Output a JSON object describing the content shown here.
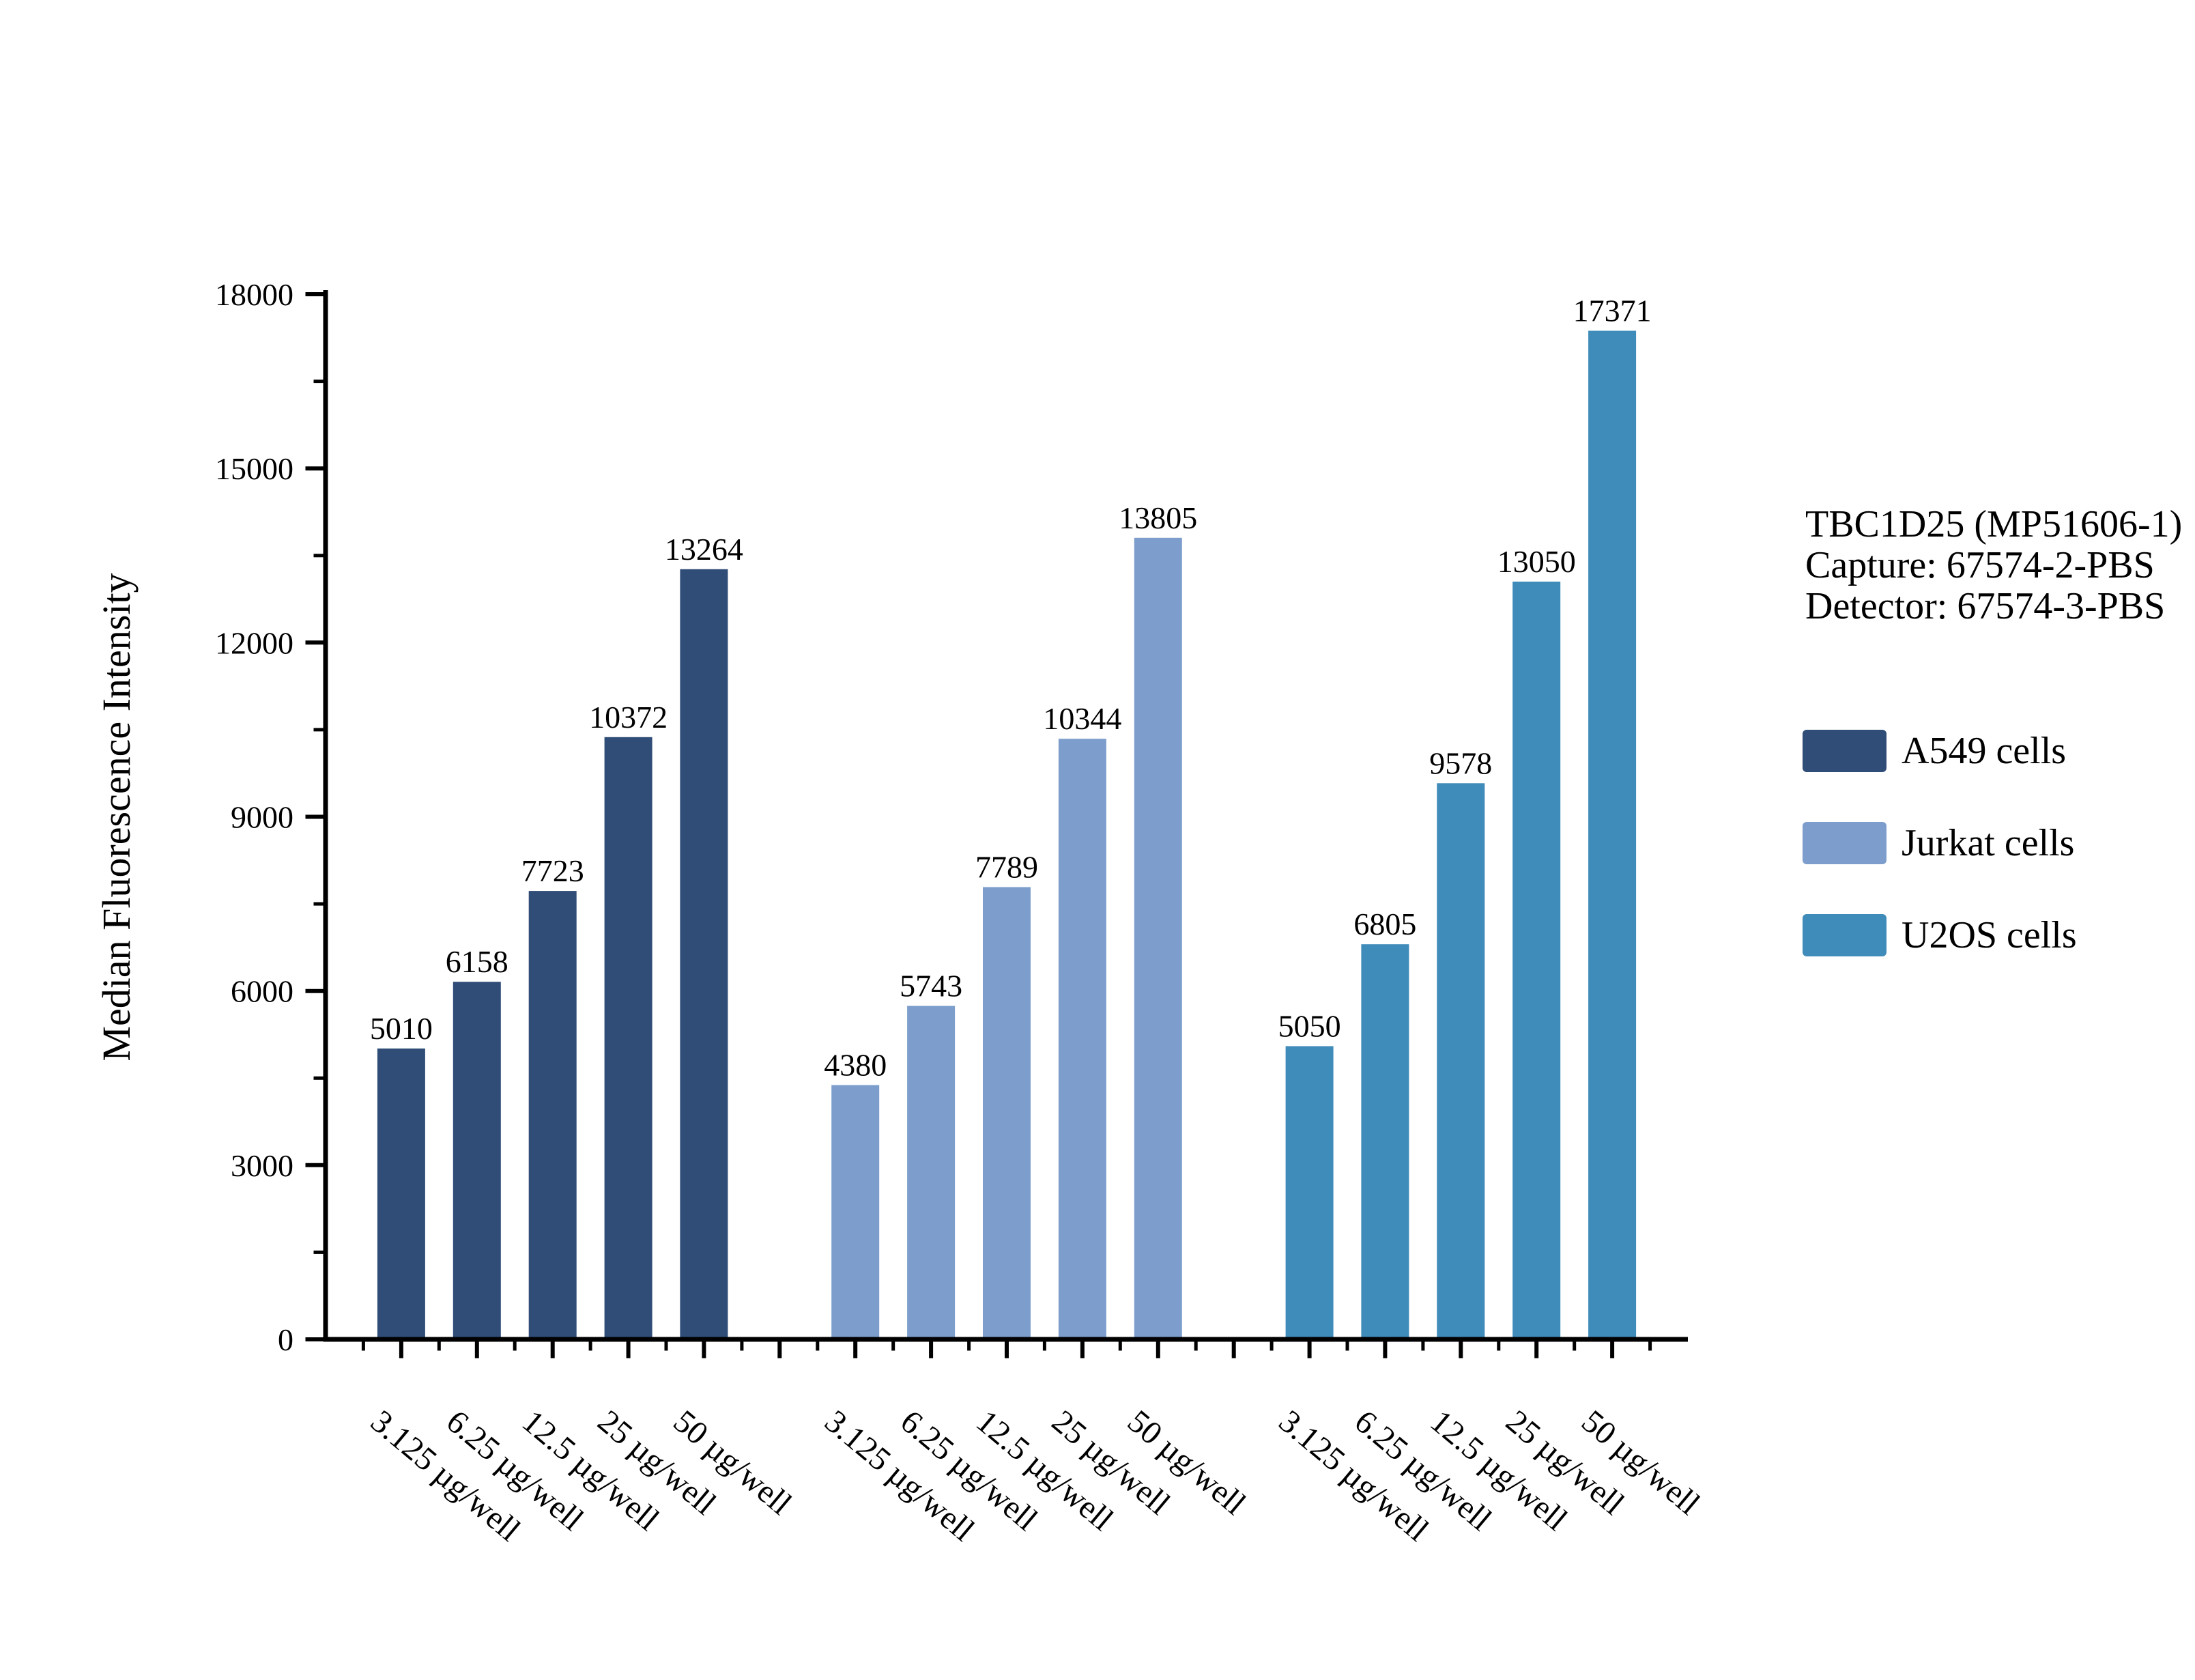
{
  "figure": {
    "background": "#ffffff",
    "text_color": "#000000",
    "axis_color": "#000000"
  },
  "chart_data": {
    "type": "bar",
    "title": "",
    "xlabel": "",
    "ylabel": "Median Fluorescence Intensity",
    "ylim": [
      0,
      18000
    ],
    "y_major_step": 3000,
    "y_minor_step": 1500,
    "y_tick_labels": [
      "0",
      "3000",
      "6000",
      "9000",
      "12000",
      "15000",
      "18000"
    ],
    "grid": false,
    "bar_value_labels": true,
    "legend_position": "right",
    "categories": [
      "3.125 µg/well",
      "6.25 µg/well",
      "12.5 µg/well",
      "25 µg/well",
      "50 µg/well"
    ],
    "series": [
      {
        "name": "A549 cells",
        "color": "#2F4D77",
        "values": [
          5010,
          6158,
          7723,
          10372,
          13264
        ]
      },
      {
        "name": "Jurkat cells",
        "color": "#7D9ECD",
        "values": [
          4380,
          5743,
          7789,
          10344,
          13805
        ]
      },
      {
        "name": "U2OS cells",
        "color": "#3F8BBA",
        "values": [
          5050,
          6805,
          9578,
          13050,
          17371
        ]
      }
    ]
  },
  "legend": {
    "title_lines": [
      "TBC1D25 (MP51606-1)",
      "Capture: 67574-2-PBS",
      "Detector: 67574-3-PBS"
    ]
  }
}
